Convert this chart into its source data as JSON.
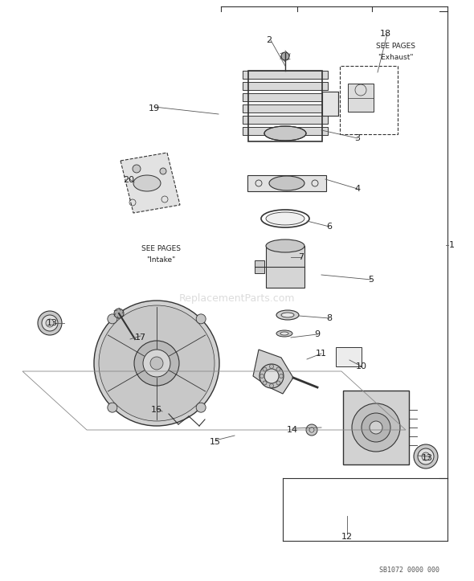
{
  "bg_color": "#ffffff",
  "line_color": "#333333",
  "label_color": "#222222",
  "fig_width": 5.9,
  "fig_height": 7.23,
  "watermark": "ReplacementParts.com",
  "part_code": "SB1072 0000 000",
  "exhaust_text1": "SEE PAGES",
  "exhaust_text2": "\"Exhaust\"",
  "intake_text1": "SEE PAGES",
  "intake_text2": "\"Intake\"",
  "labels_data": [
    [
      335,
      50,
      "2"
    ],
    [
      480,
      42,
      "18"
    ],
    [
      445,
      172,
      "3"
    ],
    [
      445,
      235,
      "4"
    ],
    [
      462,
      348,
      "5"
    ],
    [
      410,
      282,
      "6"
    ],
    [
      375,
      320,
      "7"
    ],
    [
      410,
      396,
      "8"
    ],
    [
      395,
      416,
      "9"
    ],
    [
      450,
      456,
      "10"
    ],
    [
      400,
      440,
      "11"
    ],
    [
      432,
      668,
      "12"
    ],
    [
      65,
      402,
      "13"
    ],
    [
      532,
      570,
      "13"
    ],
    [
      364,
      535,
      "14"
    ],
    [
      268,
      550,
      "15"
    ],
    [
      195,
      510,
      "16"
    ],
    [
      175,
      420,
      "17"
    ],
    [
      192,
      135,
      "19"
    ],
    [
      160,
      224,
      "20"
    ],
    [
      562,
      305,
      "1"
    ]
  ],
  "leader_lines": [
    [
      337,
      50,
      355,
      82
    ],
    [
      482,
      42,
      470,
      90
    ],
    [
      445,
      172,
      400,
      162
    ],
    [
      445,
      235,
      405,
      223
    ],
    [
      462,
      348,
      400,
      342
    ],
    [
      410,
      282,
      382,
      275
    ],
    [
      375,
      320,
      362,
      320
    ],
    [
      410,
      396,
      372,
      393
    ],
    [
      395,
      416,
      362,
      420
    ],
    [
      450,
      456,
      435,
      448
    ],
    [
      400,
      440,
      382,
      447
    ],
    [
      432,
      665,
      432,
      642
    ],
    [
      67,
      402,
      80,
      402
    ],
    [
      534,
      568,
      520,
      567
    ],
    [
      364,
      533,
      400,
      532
    ],
    [
      268,
      548,
      292,
      542
    ],
    [
      195,
      508,
      202,
      512
    ],
    [
      175,
      418,
      162,
      422
    ],
    [
      192,
      133,
      272,
      142
    ],
    [
      160,
      222,
      167,
      227
    ],
    [
      558,
      305,
      555,
      305
    ]
  ]
}
